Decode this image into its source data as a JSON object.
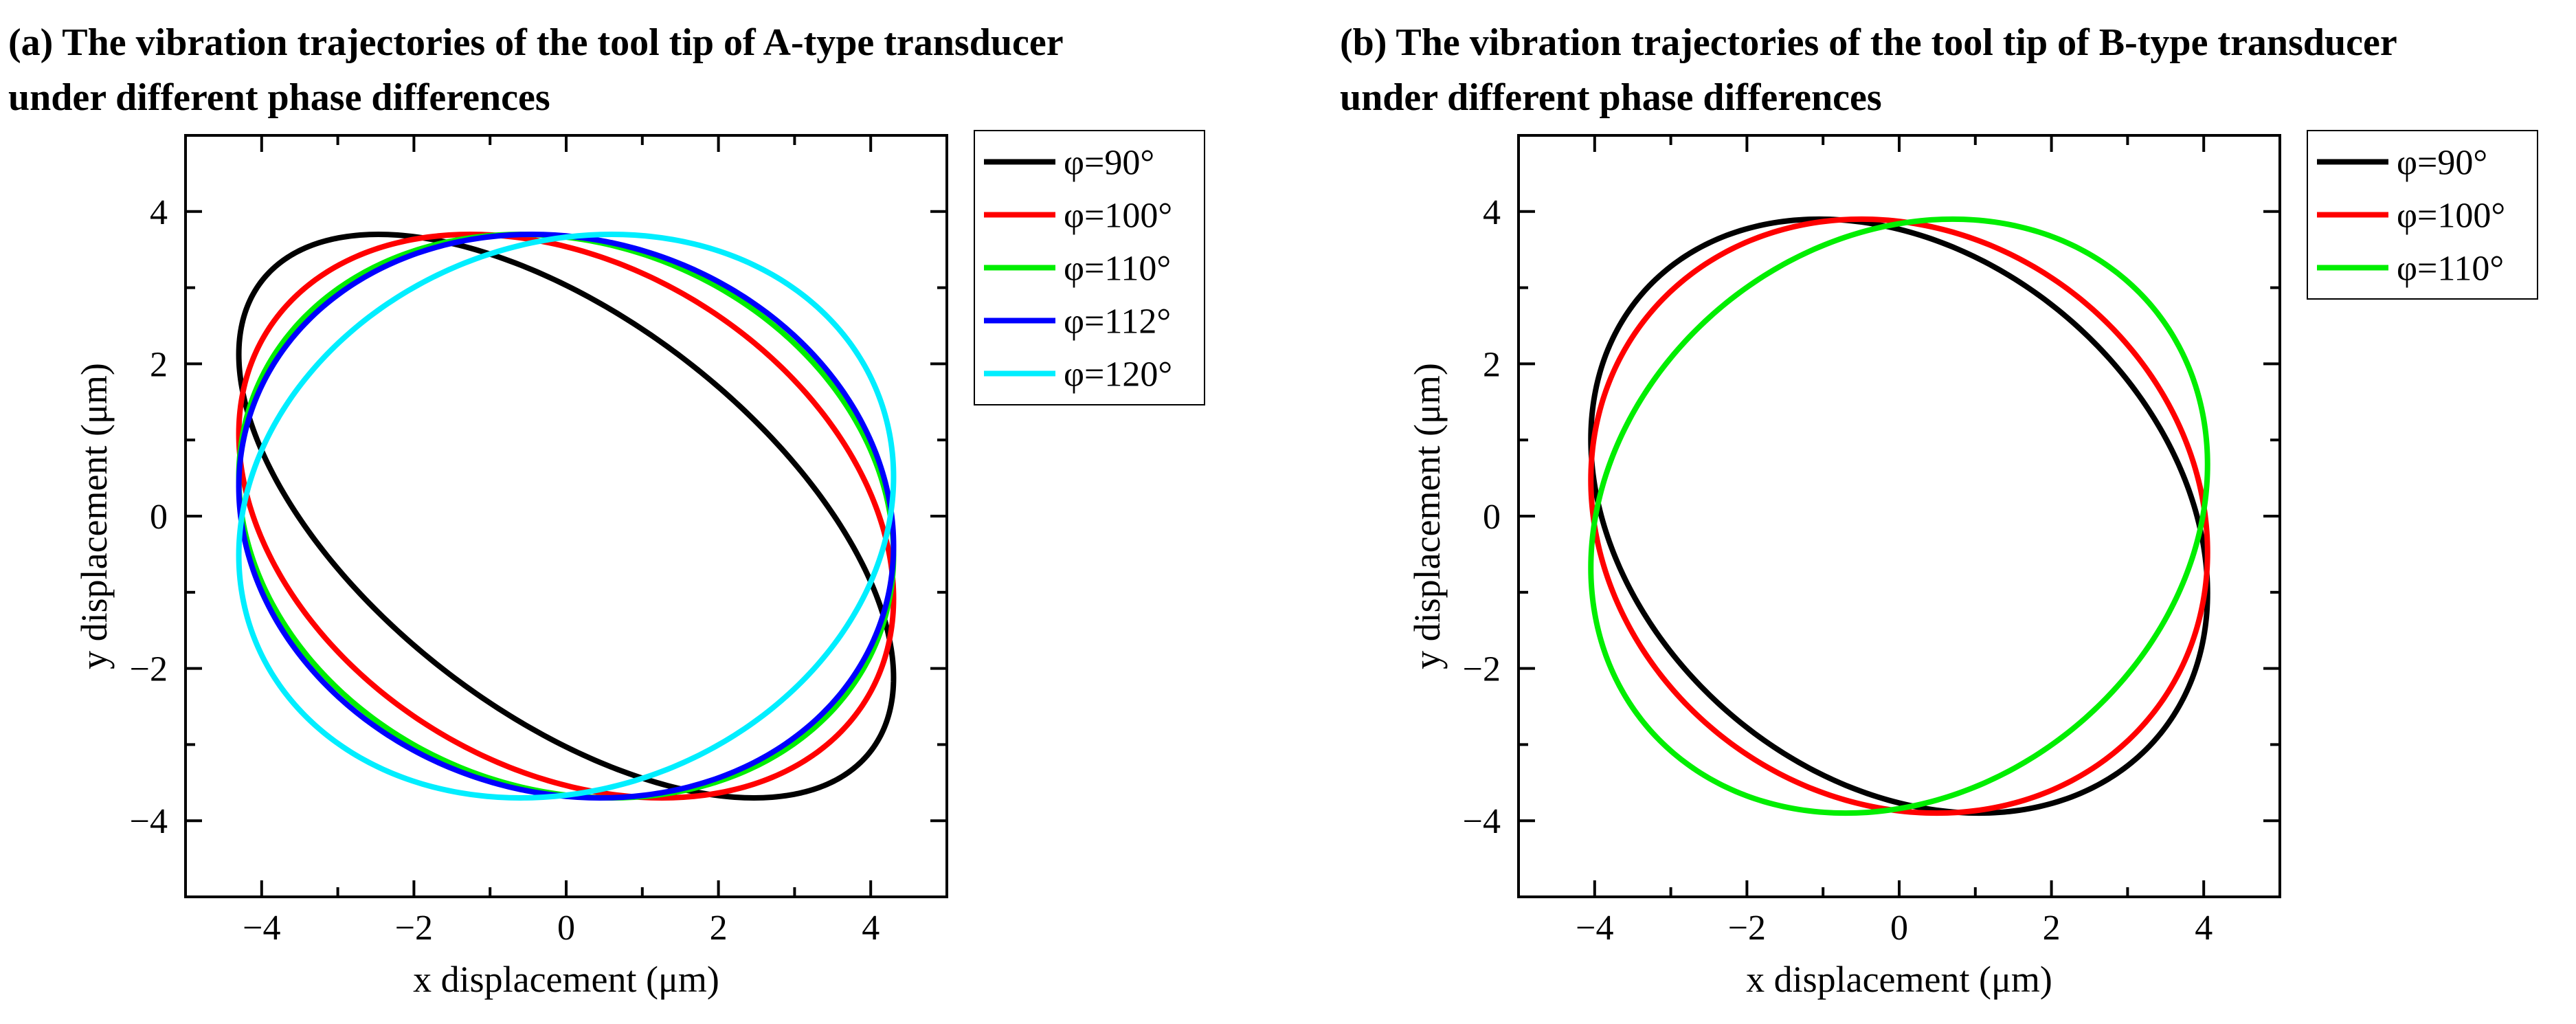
{
  "chart_data": [
    {
      "type": "line",
      "title": "(a) The vibration trajectories of the tool tip of A-type transducer under different phase differences",
      "title_lines": [
        "(a) The vibration trajectories of the tool tip of A-type transducer",
        "under different phase differences"
      ],
      "xlabel": "x displacement (μm)",
      "ylabel": "y displacement (μm)",
      "xlim": [
        -5,
        5
      ],
      "ylim": [
        -5,
        5
      ],
      "xticks": [
        -4,
        -2,
        0,
        2,
        4
      ],
      "yticks": [
        -4,
        -2,
        0,
        2,
        4
      ],
      "xtick_labels": [
        "−4",
        "−2",
        "0",
        "2",
        "4"
      ],
      "ytick_labels": [
        "−4",
        "−2",
        "0",
        "2",
        "4"
      ],
      "grid": false,
      "legend_position": "outside-right",
      "curve_model": "x = Ax·cos(t), y = Ay·cos(t − φ)",
      "amplitude_x": 4.3,
      "amplitude_y": 3.7,
      "series": [
        {
          "name": "φ=90°",
          "phi_deg": 125,
          "color": "#000000"
        },
        {
          "name": "φ=100°",
          "phi_deg": 107,
          "color": "#ff0000"
        },
        {
          "name": "φ=110°",
          "phi_deg": 98,
          "color": "#00ee00"
        },
        {
          "name": "φ=112°",
          "phi_deg": 96,
          "color": "#0000ff"
        },
        {
          "name": "φ=120°",
          "phi_deg": 82,
          "color": "#00eeff"
        }
      ]
    },
    {
      "type": "line",
      "title": "(b) The vibration trajectories of the tool tip of B-type transducer under different phase differences",
      "title_lines": [
        "(b) The vibration trajectories of the tool tip of B-type transducer",
        "under different phase differences"
      ],
      "xlabel": "x displacement (μm)",
      "ylabel": "y displacement (μm)",
      "xlim": [
        -5,
        5
      ],
      "ylim": [
        -5,
        5
      ],
      "xticks": [
        -4,
        -2,
        0,
        2,
        4
      ],
      "yticks": [
        -4,
        -2,
        0,
        2,
        4
      ],
      "xtick_labels": [
        "−4",
        "−2",
        "0",
        "2",
        "4"
      ],
      "ytick_labels": [
        "−4",
        "−2",
        "0",
        "2",
        "4"
      ],
      "grid": false,
      "legend_position": "outside-right",
      "curve_model": "x = Ax·cos(t), y = Ay·cos(t − φ)",
      "amplitude_x": 4.05,
      "amplitude_y": 3.9,
      "series": [
        {
          "name": "φ=90°",
          "phi_deg": 105,
          "color": "#000000"
        },
        {
          "name": "φ=100°",
          "phi_deg": 97,
          "color": "#ff0000"
        },
        {
          "name": "φ=110°",
          "phi_deg": 80,
          "color": "#00ee00"
        }
      ]
    }
  ]
}
